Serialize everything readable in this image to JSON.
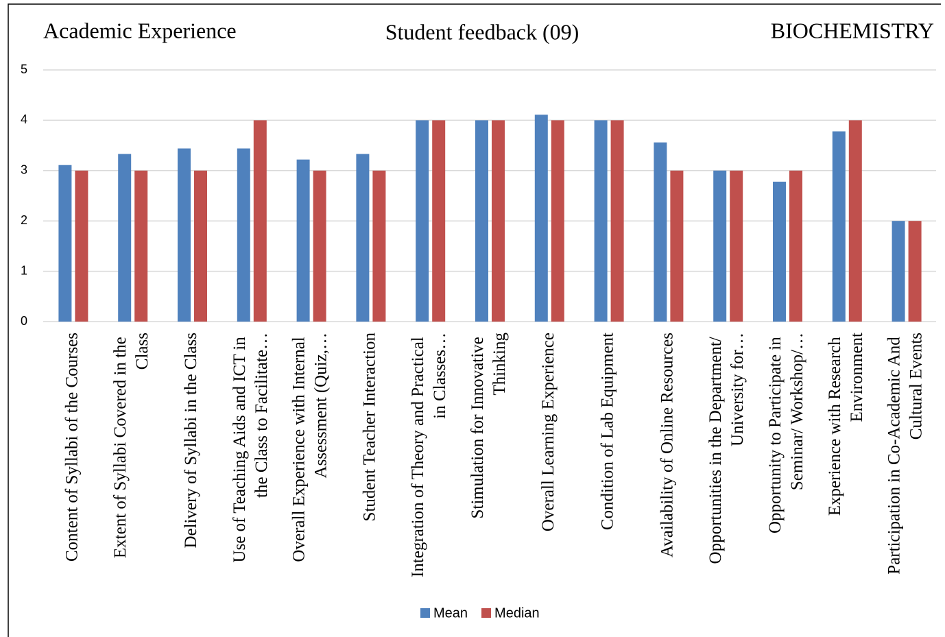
{
  "chart_data": {
    "type": "bar",
    "title": "Student feedback (09)",
    "left_title": "Academic Experience",
    "right_title": "BIOCHEMISTRY",
    "categories": [
      "Content of Syllabi of the Courses",
      "Extent of Syllabi Covered in the Class",
      "Delivery of Syllabi in the Class",
      "Use of Teaching Aids and ICT in the Class to Facilitate…",
      "Overall Experience with Internal Assessment (Quiz,…",
      "Student Teacher Interaction",
      "Integration of Theory and Practical in Classes…",
      "Stimulation for Innovative Thinking",
      "Overall Learning Experience",
      "Condition of Lab Equipment",
      "Availability of Online Resources",
      "Opportunities in the Department/ University for…",
      "Opportunity to Participate in Seminar/ Workshop/…",
      "Experience with Research Environment",
      "Participation in Co-Academic And Cultural Events"
    ],
    "series": [
      {
        "name": "Mean",
        "color": "#4f81bd",
        "values": [
          3.11,
          3.33,
          3.44,
          3.44,
          3.22,
          3.33,
          4,
          4,
          4.11,
          4,
          3.56,
          3,
          2.78,
          3.78,
          2
        ]
      },
      {
        "name": "Median",
        "color": "#c0504d",
        "values": [
          3,
          3,
          3,
          4,
          3,
          3,
          4,
          4,
          4,
          4,
          3,
          3,
          3,
          4,
          2
        ]
      }
    ],
    "ylim": [
      0,
      5
    ],
    "yticks": [
      0,
      1,
      2,
      3,
      4,
      5
    ],
    "grid": true,
    "legend": "bottom"
  }
}
